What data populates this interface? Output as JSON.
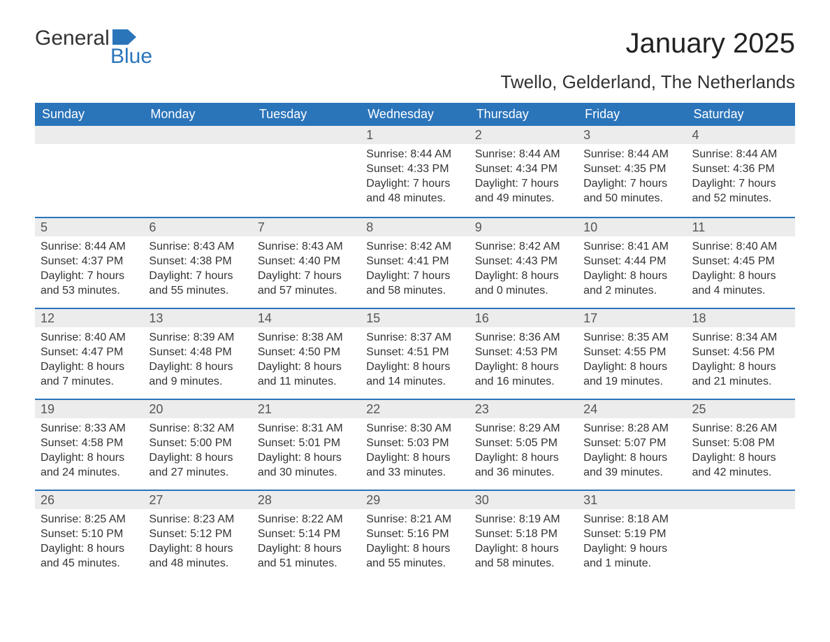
{
  "brand": {
    "word1": "General",
    "word2": "Blue",
    "flag_color": "#2a74ba"
  },
  "title": "January 2025",
  "location": "Twello, Gelderland, The Netherlands",
  "colors": {
    "header_bg": "#2a74ba",
    "header_text": "#ffffff",
    "bar_bg": "#ececec",
    "border": "#2a74ba",
    "text": "#333333",
    "background": "#ffffff"
  },
  "day_headers": [
    "Sunday",
    "Monday",
    "Tuesday",
    "Wednesday",
    "Thursday",
    "Friday",
    "Saturday"
  ],
  "weeks": [
    [
      null,
      null,
      null,
      {
        "n": "1",
        "sunrise": "Sunrise: 8:44 AM",
        "sunset": "Sunset: 4:33 PM",
        "daylight": "Daylight: 7 hours and 48 minutes."
      },
      {
        "n": "2",
        "sunrise": "Sunrise: 8:44 AM",
        "sunset": "Sunset: 4:34 PM",
        "daylight": "Daylight: 7 hours and 49 minutes."
      },
      {
        "n": "3",
        "sunrise": "Sunrise: 8:44 AM",
        "sunset": "Sunset: 4:35 PM",
        "daylight": "Daylight: 7 hours and 50 minutes."
      },
      {
        "n": "4",
        "sunrise": "Sunrise: 8:44 AM",
        "sunset": "Sunset: 4:36 PM",
        "daylight": "Daylight: 7 hours and 52 minutes."
      }
    ],
    [
      {
        "n": "5",
        "sunrise": "Sunrise: 8:44 AM",
        "sunset": "Sunset: 4:37 PM",
        "daylight": "Daylight: 7 hours and 53 minutes."
      },
      {
        "n": "6",
        "sunrise": "Sunrise: 8:43 AM",
        "sunset": "Sunset: 4:38 PM",
        "daylight": "Daylight: 7 hours and 55 minutes."
      },
      {
        "n": "7",
        "sunrise": "Sunrise: 8:43 AM",
        "sunset": "Sunset: 4:40 PM",
        "daylight": "Daylight: 7 hours and 57 minutes."
      },
      {
        "n": "8",
        "sunrise": "Sunrise: 8:42 AM",
        "sunset": "Sunset: 4:41 PM",
        "daylight": "Daylight: 7 hours and 58 minutes."
      },
      {
        "n": "9",
        "sunrise": "Sunrise: 8:42 AM",
        "sunset": "Sunset: 4:43 PM",
        "daylight": "Daylight: 8 hours and 0 minutes."
      },
      {
        "n": "10",
        "sunrise": "Sunrise: 8:41 AM",
        "sunset": "Sunset: 4:44 PM",
        "daylight": "Daylight: 8 hours and 2 minutes."
      },
      {
        "n": "11",
        "sunrise": "Sunrise: 8:40 AM",
        "sunset": "Sunset: 4:45 PM",
        "daylight": "Daylight: 8 hours and 4 minutes."
      }
    ],
    [
      {
        "n": "12",
        "sunrise": "Sunrise: 8:40 AM",
        "sunset": "Sunset: 4:47 PM",
        "daylight": "Daylight: 8 hours and 7 minutes."
      },
      {
        "n": "13",
        "sunrise": "Sunrise: 8:39 AM",
        "sunset": "Sunset: 4:48 PM",
        "daylight": "Daylight: 8 hours and 9 minutes."
      },
      {
        "n": "14",
        "sunrise": "Sunrise: 8:38 AM",
        "sunset": "Sunset: 4:50 PM",
        "daylight": "Daylight: 8 hours and 11 minutes."
      },
      {
        "n": "15",
        "sunrise": "Sunrise: 8:37 AM",
        "sunset": "Sunset: 4:51 PM",
        "daylight": "Daylight: 8 hours and 14 minutes."
      },
      {
        "n": "16",
        "sunrise": "Sunrise: 8:36 AM",
        "sunset": "Sunset: 4:53 PM",
        "daylight": "Daylight: 8 hours and 16 minutes."
      },
      {
        "n": "17",
        "sunrise": "Sunrise: 8:35 AM",
        "sunset": "Sunset: 4:55 PM",
        "daylight": "Daylight: 8 hours and 19 minutes."
      },
      {
        "n": "18",
        "sunrise": "Sunrise: 8:34 AM",
        "sunset": "Sunset: 4:56 PM",
        "daylight": "Daylight: 8 hours and 21 minutes."
      }
    ],
    [
      {
        "n": "19",
        "sunrise": "Sunrise: 8:33 AM",
        "sunset": "Sunset: 4:58 PM",
        "daylight": "Daylight: 8 hours and 24 minutes."
      },
      {
        "n": "20",
        "sunrise": "Sunrise: 8:32 AM",
        "sunset": "Sunset: 5:00 PM",
        "daylight": "Daylight: 8 hours and 27 minutes."
      },
      {
        "n": "21",
        "sunrise": "Sunrise: 8:31 AM",
        "sunset": "Sunset: 5:01 PM",
        "daylight": "Daylight: 8 hours and 30 minutes."
      },
      {
        "n": "22",
        "sunrise": "Sunrise: 8:30 AM",
        "sunset": "Sunset: 5:03 PM",
        "daylight": "Daylight: 8 hours and 33 minutes."
      },
      {
        "n": "23",
        "sunrise": "Sunrise: 8:29 AM",
        "sunset": "Sunset: 5:05 PM",
        "daylight": "Daylight: 8 hours and 36 minutes."
      },
      {
        "n": "24",
        "sunrise": "Sunrise: 8:28 AM",
        "sunset": "Sunset: 5:07 PM",
        "daylight": "Daylight: 8 hours and 39 minutes."
      },
      {
        "n": "25",
        "sunrise": "Sunrise: 8:26 AM",
        "sunset": "Sunset: 5:08 PM",
        "daylight": "Daylight: 8 hours and 42 minutes."
      }
    ],
    [
      {
        "n": "26",
        "sunrise": "Sunrise: 8:25 AM",
        "sunset": "Sunset: 5:10 PM",
        "daylight": "Daylight: 8 hours and 45 minutes."
      },
      {
        "n": "27",
        "sunrise": "Sunrise: 8:23 AM",
        "sunset": "Sunset: 5:12 PM",
        "daylight": "Daylight: 8 hours and 48 minutes."
      },
      {
        "n": "28",
        "sunrise": "Sunrise: 8:22 AM",
        "sunset": "Sunset: 5:14 PM",
        "daylight": "Daylight: 8 hours and 51 minutes."
      },
      {
        "n": "29",
        "sunrise": "Sunrise: 8:21 AM",
        "sunset": "Sunset: 5:16 PM",
        "daylight": "Daylight: 8 hours and 55 minutes."
      },
      {
        "n": "30",
        "sunrise": "Sunrise: 8:19 AM",
        "sunset": "Sunset: 5:18 PM",
        "daylight": "Daylight: 8 hours and 58 minutes."
      },
      {
        "n": "31",
        "sunrise": "Sunrise: 8:18 AM",
        "sunset": "Sunset: 5:19 PM",
        "daylight": "Daylight: 9 hours and 1 minute."
      },
      null
    ]
  ]
}
